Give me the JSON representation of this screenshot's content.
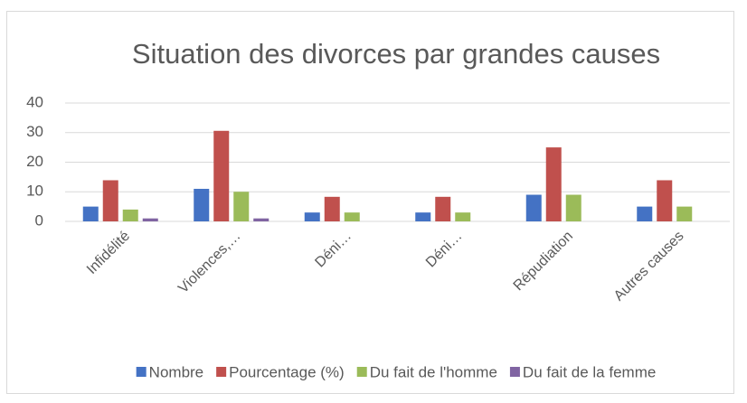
{
  "chart_data": {
    "type": "bar",
    "title": "Situation des divorces par grandes causes",
    "categories": [
      "Infidélité",
      "Violences,…",
      "Déni…",
      "Déni…",
      "Répudiation",
      "Autres causes"
    ],
    "series": [
      {
        "name": "Nombre",
        "color": "#4472c4",
        "values": [
          5,
          11,
          3,
          3,
          9,
          5
        ]
      },
      {
        "name": "Pourcentage (%)",
        "color": "#c0504d",
        "values": [
          13.9,
          30.6,
          8.3,
          8.3,
          25,
          13.9
        ]
      },
      {
        "name": "Du fait de l'homme",
        "color": "#9bbb59",
        "values": [
          4,
          10,
          3,
          3,
          9,
          5
        ]
      },
      {
        "name": "Du fait de la femme",
        "color": "#8064a2",
        "values": [
          1,
          1,
          0,
          0,
          0,
          0
        ]
      }
    ],
    "ylim": [
      0,
      40
    ],
    "yticks": [
      0,
      10,
      20,
      30,
      40
    ],
    "grid": true,
    "legend": "bottom"
  }
}
